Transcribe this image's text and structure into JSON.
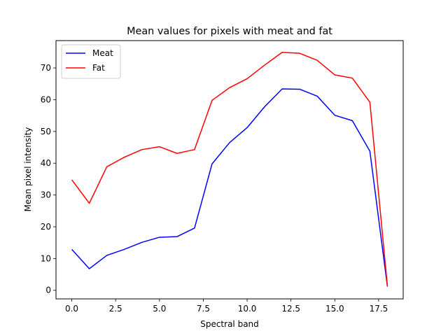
{
  "chart_data": {
    "type": "line",
    "title": "Mean values for pixels with meat and fat",
    "xlabel": "Spectral band",
    "ylabel": "Mean pixel intensity",
    "xlim": [
      -0.9,
      18.9
    ],
    "ylim": [
      -2.7,
      78.6
    ],
    "xticks": [
      0,
      2.5,
      5,
      7.5,
      10,
      12.5,
      15,
      17.5
    ],
    "xtick_labels": [
      "0.0",
      "2.5",
      "5.0",
      "7.5",
      "10.0",
      "12.5",
      "15.0",
      "17.5"
    ],
    "yticks": [
      0,
      10,
      20,
      30,
      40,
      50,
      60,
      70
    ],
    "ytick_labels": [
      "0",
      "10",
      "20",
      "30",
      "40",
      "50",
      "60",
      "70"
    ],
    "grid": false,
    "legend_position": "upper-left",
    "x": [
      0,
      1,
      2,
      3,
      4,
      5,
      6,
      7,
      8,
      9,
      10,
      11,
      12,
      13,
      14,
      15,
      16,
      17,
      18
    ],
    "series": [
      {
        "name": "Meat",
        "color": "#0000ff",
        "values": [
          12.9,
          6.8,
          11.0,
          12.9,
          15.1,
          16.7,
          16.9,
          19.6,
          39.8,
          46.5,
          51.2,
          57.8,
          63.4,
          63.3,
          61.1,
          55.1,
          53.4,
          43.8,
          1.2
        ]
      },
      {
        "name": "Fat",
        "color": "#ff0000",
        "values": [
          34.8,
          27.4,
          38.9,
          41.9,
          44.3,
          45.2,
          43.1,
          44.3,
          59.8,
          63.8,
          66.6,
          70.9,
          74.9,
          74.6,
          72.4,
          67.8,
          66.8,
          59.2,
          1.3
        ]
      }
    ]
  }
}
